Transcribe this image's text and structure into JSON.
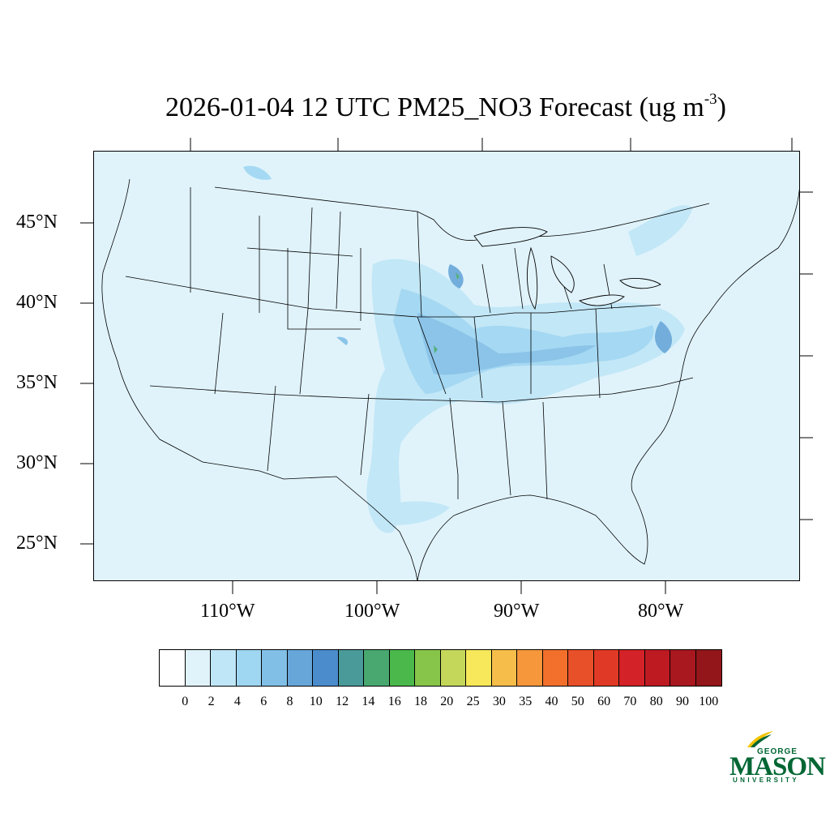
{
  "title": {
    "main": "2026-01-04 12 UTC PM25_NO3 Forecast (ug m",
    "superscript": "-3",
    "close": ")"
  },
  "map": {
    "region": "Contiguous United States",
    "variable": "PM25_NO3",
    "units": "ug m-3",
    "lat_labels": [
      "45°N",
      "40°N",
      "35°N",
      "30°N",
      "25°N"
    ],
    "lon_labels": [
      "110°W",
      "100°W",
      "90°W",
      "80°W"
    ],
    "background_color": "#e0f3fb"
  },
  "colorbar": {
    "labels": [
      "0",
      "2",
      "4",
      "6",
      "8",
      "10",
      "12",
      "14",
      "16",
      "18",
      "20",
      "25",
      "30",
      "35",
      "40",
      "50",
      "60",
      "70",
      "80",
      "90",
      "100"
    ],
    "colors": [
      "#ffffff",
      "#e0f3fb",
      "#bfe6f7",
      "#9fd6f2",
      "#82bfe6",
      "#67a6d9",
      "#4a8ccc",
      "#4a9a9a",
      "#48a870",
      "#4ab84a",
      "#86c54a",
      "#c4d75a",
      "#f6e85a",
      "#f6bd4a",
      "#f6973c",
      "#f2702c",
      "#e8502a",
      "#e03a26",
      "#d32228",
      "#bd1a22",
      "#a8181e",
      "#92161a"
    ]
  },
  "logo": {
    "line1": "GEORGE",
    "line2": "MASON",
    "line3": "UNIVERSITY",
    "color": "#006633",
    "accent": "#f2c300"
  }
}
